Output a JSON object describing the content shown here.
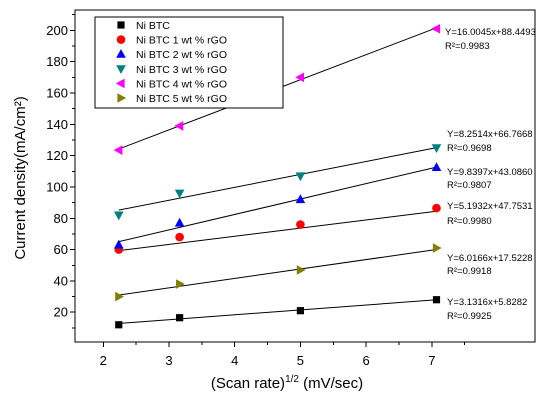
{
  "chart_data": {
    "type": "scatter",
    "xlabel": {
      "text": "(Scan rate)",
      "sup": "1/2",
      "suffix": " (mV/sec)"
    },
    "ylabel": "Current density(mA/cm²)",
    "xlim": [
      1.57,
      8.57
    ],
    "ylim": [
      1,
      213
    ],
    "x_ticks": [
      "2",
      "3",
      "4",
      "5",
      "6",
      "7"
    ],
    "y_ticks": [
      "20",
      "40",
      "60",
      "80",
      "100",
      "120",
      "140",
      "160",
      "180",
      "200"
    ],
    "grid": false,
    "legend_position": "top-left",
    "x": [
      2.236,
      3.162,
      5.0,
      7.071
    ],
    "series": [
      {
        "name": "Ni BTC",
        "marker": "square",
        "color": "#000000",
        "values": [
          12.0,
          16.5,
          21.0,
          28.0
        ],
        "fit": {
          "slope": 3.1316,
          "intercept": 5.8282,
          "equation": "Y=3.1316x+5.8282",
          "r2": "R²=0.9925"
        }
      },
      {
        "name": "Ni BTC 1 wt % rGO",
        "marker": "circle",
        "color": "#ff0000",
        "values": [
          60.0,
          68.0,
          76.0,
          86.5
        ],
        "fit": {
          "slope": 5.1932,
          "intercept": 47.7531,
          "equation": "Y=5.1932x+47.7531",
          "r2": "R²=0.9980"
        }
      },
      {
        "name": "Ni BTC 2 wt % rGO",
        "marker": "triangle-up",
        "color": "#0000ff",
        "values": [
          63.0,
          77.0,
          92.0,
          112.5
        ],
        "fit": {
          "slope": 9.8397,
          "intercept": 43.086,
          "equation": "Y=9.8397x+43.0860",
          "r2": "R²=0.9807"
        }
      },
      {
        "name": "Ni BTC 3 wt % rGO",
        "marker": "triangle-down",
        "color": "#008080",
        "values": [
          82.0,
          96.0,
          107.0,
          125.0
        ],
        "fit": {
          "slope": 8.2514,
          "intercept": 66.7668,
          "equation": "Y=8.2514x+66.7668",
          "r2": "R²=0.9698"
        }
      },
      {
        "name": "Ni BTC 4 wt % rGO",
        "marker": "triangle-left",
        "color": "#ff00ff",
        "values": [
          123.5,
          139.0,
          170.0,
          201.0
        ],
        "fit": {
          "slope": 16.0045,
          "intercept": 88.4493,
          "equation": "Y=16.0045x+88.4493",
          "r2": "R²=0.9983"
        }
      },
      {
        "name": "Ni BTC 5 wt % rGO",
        "marker": "triangle-right",
        "color": "#808000",
        "values": [
          30.0,
          38.0,
          47.0,
          61.0
        ],
        "fit": {
          "slope": 6.0166,
          "intercept": 17.5228,
          "equation": "Y=6.0166x+17.5228",
          "r2": "R²=0.9918"
        }
      }
    ]
  }
}
